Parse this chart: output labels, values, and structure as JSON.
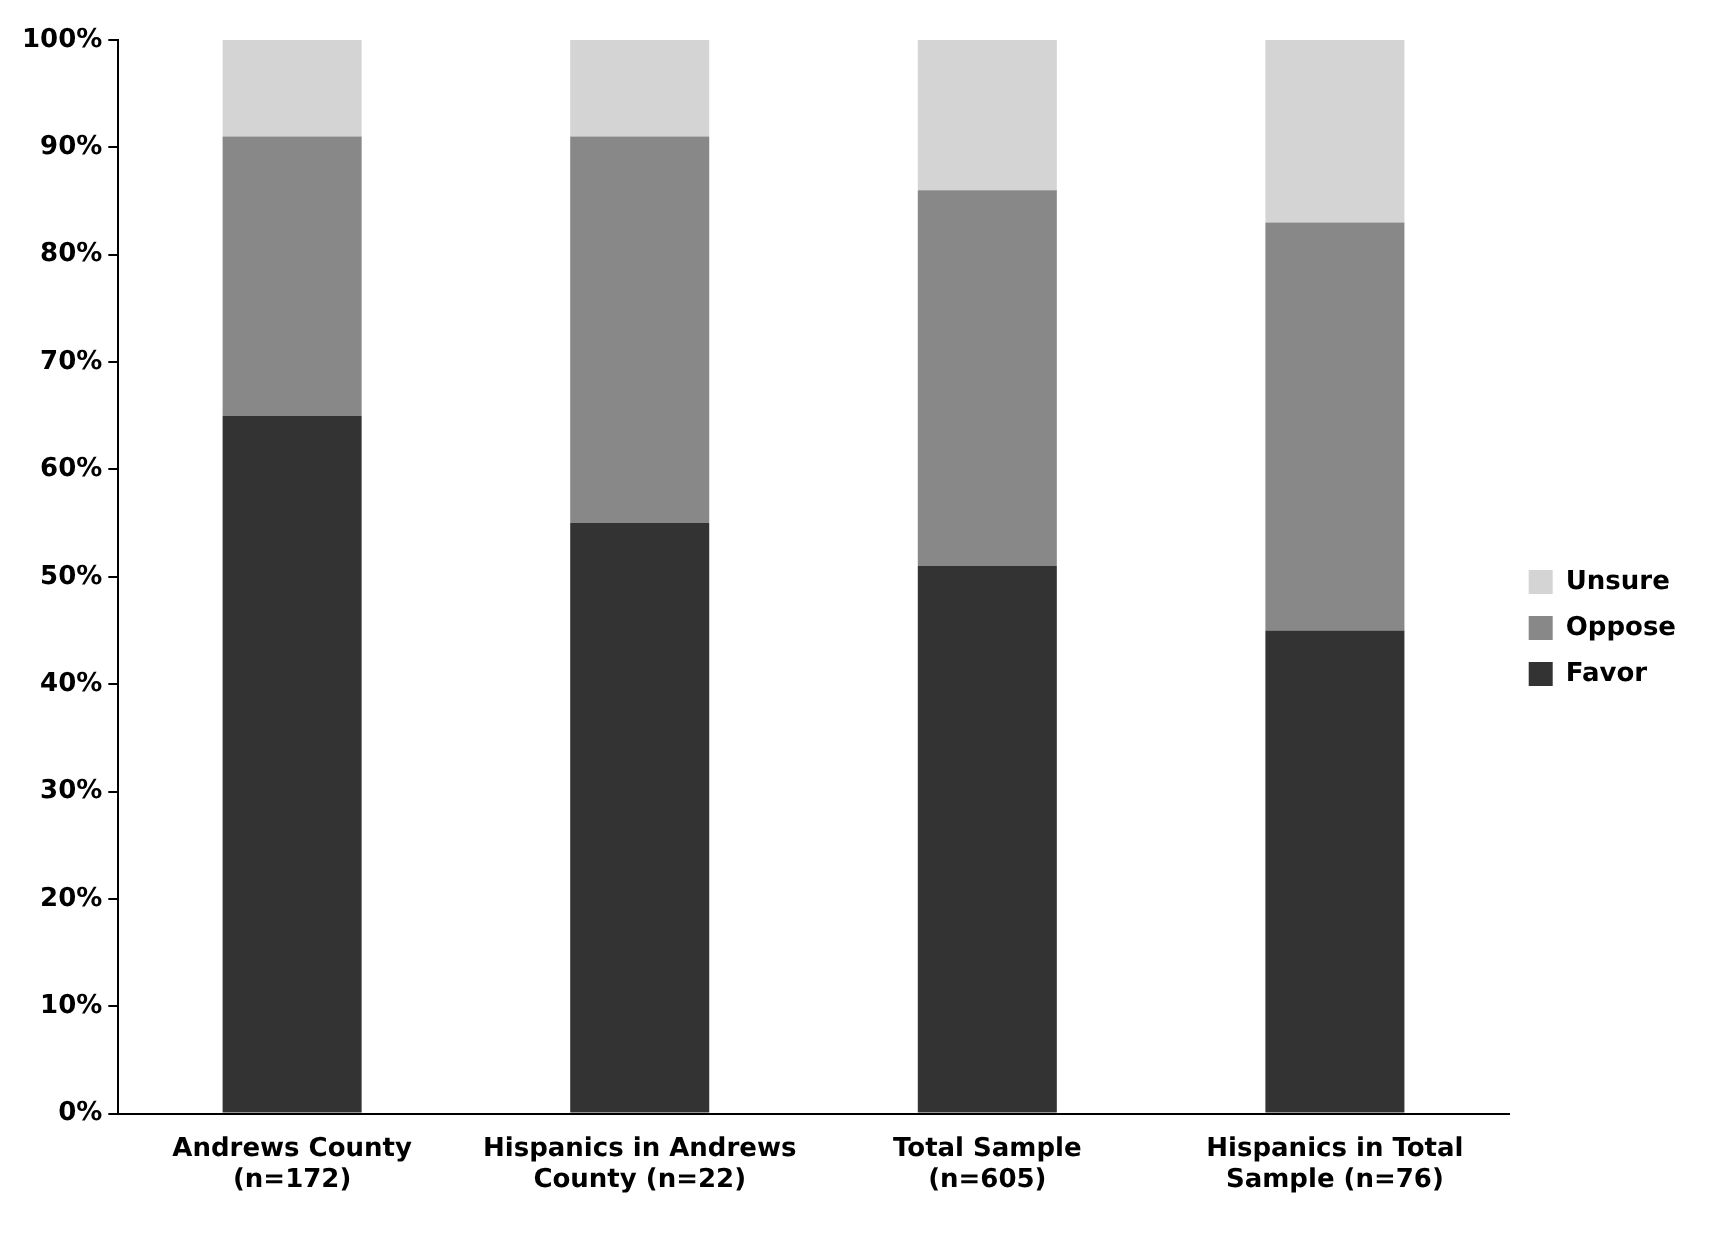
{
  "chart_data": {
    "type": "bar",
    "stacked": true,
    "categories": [
      "Andrews County\n(n=172)",
      "Hispanics in Andrews\nCounty (n=22)",
      "Total Sample\n(n=605)",
      "Hispanics in Total\nSample (n=76)"
    ],
    "series": [
      {
        "name": "Favor",
        "color": "#333333",
        "values": [
          65,
          55,
          51,
          45
        ]
      },
      {
        "name": "Oppose",
        "color": "#888888",
        "values": [
          26,
          36,
          35,
          38
        ]
      },
      {
        "name": "Unsure",
        "color": "#d4d4d4",
        "values": [
          9,
          9,
          14,
          17
        ]
      }
    ],
    "ylim": [
      0,
      100
    ],
    "yticks": [
      {
        "value": 0,
        "label": "0%"
      },
      {
        "value": 10,
        "label": "10%"
      },
      {
        "value": 20,
        "label": "20%"
      },
      {
        "value": 30,
        "label": "30%"
      },
      {
        "value": 40,
        "label": "40%"
      },
      {
        "value": 50,
        "label": "50%"
      },
      {
        "value": 60,
        "label": "60%"
      },
      {
        "value": 70,
        "label": "70%"
      },
      {
        "value": 80,
        "label": "80%"
      },
      {
        "value": 90,
        "label": "90%"
      },
      {
        "value": 100,
        "label": "100%"
      }
    ],
    "grid": false,
    "legend": "right"
  }
}
